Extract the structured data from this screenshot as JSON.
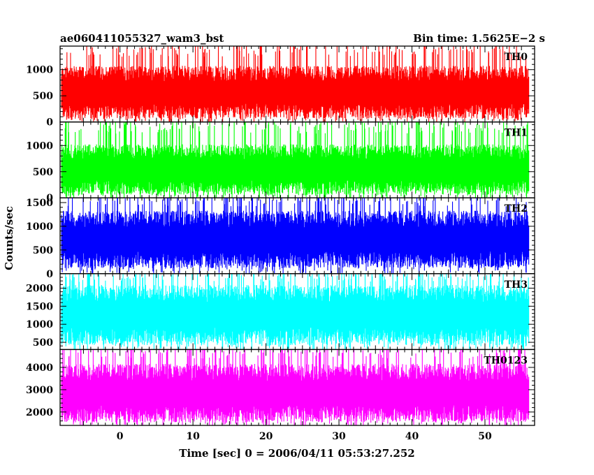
{
  "header": {
    "title": "ae060411055327_wam3_bst",
    "bin_time": "Bin time: 1.5625E−2 s"
  },
  "chart_data": {
    "type": "line",
    "title": "ae060411055327_wam3_bst",
    "xlabel": "Time [sec] 0 = 2006/04/11 05:53:27.252",
    "ylabel": "Counts/sec",
    "xlim": [
      -8.2,
      56.8
    ],
    "x_range": [
      -8,
      56
    ],
    "x_ticks": [
      0,
      10,
      20,
      30,
      40,
      50
    ],
    "grid": false,
    "panels": [
      {
        "name": "TH0",
        "color": "#ff0000",
        "ylim": [
          0,
          1450
        ],
        "y_ticks": [
          0,
          500,
          1000
        ],
        "band": [
          60,
          1050,
          1420
        ],
        "mean": 560
      },
      {
        "name": "TH1",
        "color": "#00ff00",
        "ylim": [
          0,
          1450
        ],
        "y_ticks": [
          0,
          500,
          1000
        ],
        "band": [
          60,
          1000,
          1400
        ],
        "mean": 520
      },
      {
        "name": "TH2",
        "color": "#0000ff",
        "ylim": [
          0,
          1600
        ],
        "y_ticks": [
          0,
          500,
          1000,
          1500
        ],
        "band": [
          120,
          1300,
          1600
        ],
        "mean": 700
      },
      {
        "name": "TH3",
        "color": "#00ffff",
        "ylim": [
          300,
          2400
        ],
        "y_ticks": [
          500,
          1000,
          1500,
          2000
        ],
        "band": [
          420,
          2050,
          2400
        ],
        "mean": 1250
      },
      {
        "name": "TH0123",
        "color": "#ff00ff",
        "ylim": [
          1400,
          4800
        ],
        "y_ticks": [
          2000,
          3000,
          4000
        ],
        "band": [
          1550,
          4100,
          4800
        ],
        "mean": 2800
      }
    ]
  }
}
